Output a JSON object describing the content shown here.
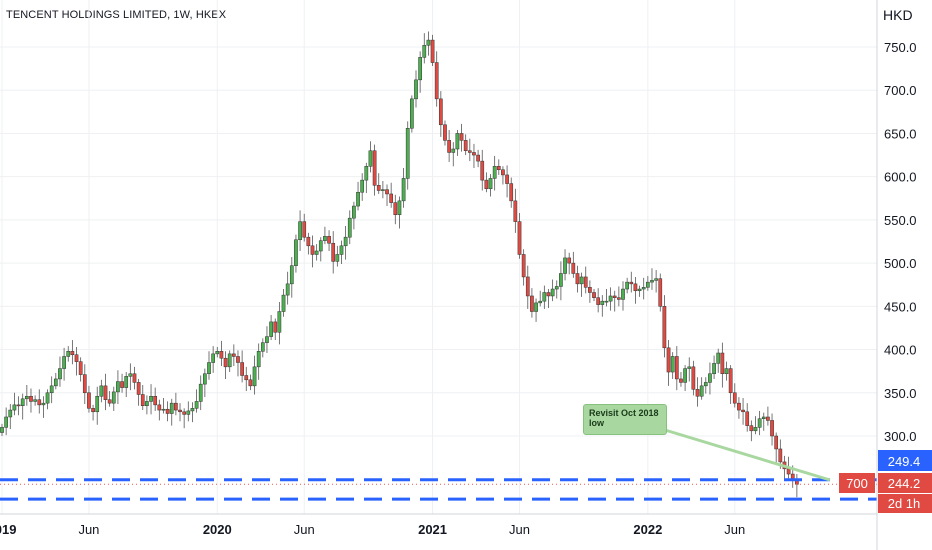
{
  "header": {
    "title": "TENCENT HOLDINGS LIMITED, 1W, HKEX"
  },
  "axis": {
    "currency": "HKD"
  },
  "badges": {
    "symbol": "700",
    "price_top": "249.4",
    "price_main": "244.2",
    "countdown": "2d 1h"
  },
  "annotation": {
    "line1": "Revisit Oct 2018",
    "line2": "low"
  },
  "colors": {
    "up": "#26a69a",
    "down": "#ef5350",
    "up_fill": "#4caf50",
    "down_fill": "#e04a43",
    "dashed": "#2962ff",
    "callout": "#a8d8a0"
  },
  "chart_data": {
    "type": "candlestick",
    "title": "TENCENT HOLDINGS LIMITED, 1W, HKEX",
    "ylabel": "HKD",
    "ylim": [
      240,
      770
    ],
    "yticks": [
      300,
      350,
      400,
      450,
      500,
      550,
      600,
      650,
      700,
      750
    ],
    "ytick_labels": [
      "300.0",
      "350.0",
      "400.0",
      "450.0",
      "500.0",
      "550.0",
      "600.0",
      "650.0",
      "700.0",
      "750.0"
    ],
    "xtick_labels": [
      "2019",
      "Jun",
      "2020",
      "Jun",
      "2021",
      "Jun",
      "2022",
      "Jun"
    ],
    "xtick_weeks": [
      0,
      21,
      52,
      73,
      104,
      125,
      156,
      177
    ],
    "support_levels": [
      249.4,
      227
    ],
    "last_price": 244.2,
    "close_series": [
      310,
      322,
      330,
      336,
      335,
      343,
      346,
      340,
      342,
      336,
      338,
      350,
      358,
      366,
      378,
      392,
      398,
      394,
      386,
      371,
      350,
      332,
      328,
      346,
      358,
      342,
      338,
      351,
      363,
      356,
      369,
      372,
      362,
      348,
      335,
      340,
      346,
      336,
      330,
      331,
      326,
      338,
      330,
      328,
      325,
      329,
      332,
      340,
      360,
      372,
      385,
      395,
      398,
      390,
      380,
      395,
      392,
      385,
      370,
      365,
      358,
      380,
      398,
      408,
      415,
      432,
      420,
      444,
      463,
      476,
      497,
      527,
      548,
      530,
      520,
      510,
      514,
      526,
      531,
      523,
      502,
      510,
      520,
      530,
      552,
      566,
      582,
      596,
      612,
      630,
      590,
      584,
      585,
      580,
      570,
      556,
      572,
      598,
      656,
      690,
      712,
      738,
      752,
      758,
      732,
      690,
      660,
      642,
      628,
      632,
      650,
      642,
      630,
      628,
      625,
      618,
      596,
      586,
      598,
      612,
      608,
      602,
      592,
      572,
      548,
      510,
      484,
      462,
      444,
      454,
      456,
      466,
      462,
      470,
      473,
      488,
      506,
      500,
      488,
      476,
      484,
      472,
      466,
      460,
      452,
      456,
      456,
      462,
      460,
      458,
      470,
      478,
      476,
      468,
      470,
      472,
      478,
      480,
      482,
      450,
      402,
      374,
      392,
      366,
      362,
      378,
      380,
      354,
      346,
      358,
      362,
      372,
      384,
      396,
      372,
      378,
      350,
      338,
      330,
      328,
      312,
      306,
      310,
      320,
      322,
      318,
      300,
      285,
      270,
      262,
      256,
      250,
      244.2
    ]
  }
}
